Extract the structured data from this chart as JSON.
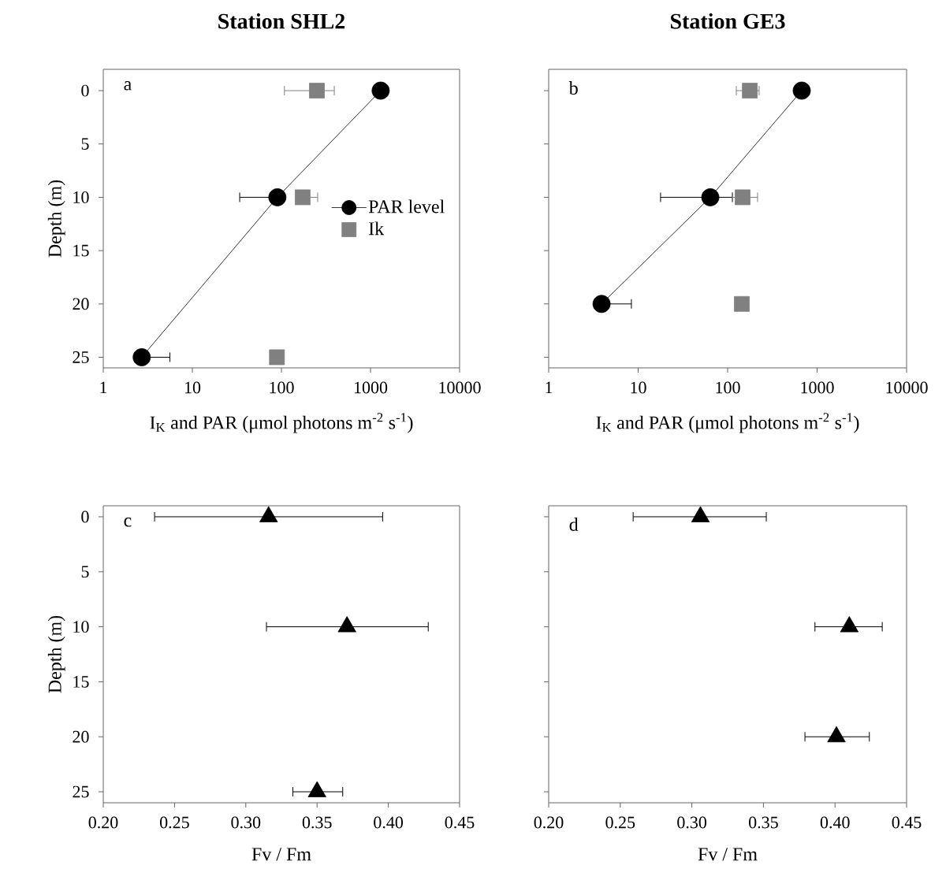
{
  "chart_data": [
    {
      "type": "scatter",
      "title": "Station SHL2",
      "xlabel": "I$_{K}$ and PAR (μmol photons m$^{-2}$ s$^{-1}$)",
      "ylabel": "Depth (m)",
      "annotations": [
        "a"
      ],
      "log": "x",
      "xlim": [
        1,
        10000
      ],
      "xticks": [
        1,
        10,
        100,
        1000,
        10000
      ],
      "ylim": [
        26,
        -2
      ],
      "yticks": [
        0,
        5,
        10,
        15,
        20,
        25
      ],
      "legend": "right",
      "series": [
        {
          "name": "PAR level",
          "type": "line",
          "marker": "circle",
          "color": "#000000",
          "x": [
            1300,
            90,
            2.7
          ],
          "values": [
            0,
            10,
            25
          ],
          "xerrors": [
            null,
            [
              34,
              106
            ],
            [
              2.7,
              5.6
            ]
          ]
        },
        {
          "name": "Ik",
          "type": "scatter",
          "marker": "square",
          "color": "#808080",
          "x": [
            250,
            173,
            89
          ],
          "values": [
            0,
            10,
            25
          ],
          "xerrors": [
            [
              108,
              392
            ],
            [
              173,
              255
            ],
            null
          ]
        }
      ]
    },
    {
      "type": "scatter",
      "title": "Station GE3",
      "xlabel": "I$_{K}$ and PAR (μmol photons m$^{-2}$ s$^{-1}$)",
      "annotations": [
        "b"
      ],
      "log": "x",
      "xlim": [
        1,
        10000
      ],
      "xticks": [
        1,
        10,
        100,
        1000,
        10000
      ],
      "ylim": [
        26,
        -2
      ],
      "yticks": [
        0,
        5,
        10,
        15,
        20,
        25
      ],
      "tick_labels": "x",
      "series": [
        {
          "type": "line",
          "marker": "circle",
          "color": "#000000",
          "x": [
            673,
            64,
            3.9
          ],
          "values": [
            0,
            10,
            20
          ],
          "xerrors": [
            null,
            [
              17.8,
              113
            ],
            [
              3.9,
              8.4
            ]
          ]
        },
        {
          "type": "scatter",
          "marker": "square",
          "color": "#808080",
          "x": [
            177,
            147,
            144
          ],
          "values": [
            0,
            10,
            20
          ],
          "xerrors": [
            [
              125,
              225
            ],
            [
              113,
              216
            ],
            null
          ]
        }
      ]
    },
    {
      "type": "scatter",
      "xlabel": "Fv / Fm",
      "ylabel": "Depth (m)",
      "annotations": [
        "c"
      ],
      "xlim": [
        0.2,
        0.45
      ],
      "xticks": [
        {
          "value": 0.2,
          "label": "0.20"
        },
        {
          "value": 0.25,
          "label": "0.25"
        },
        {
          "value": 0.3,
          "label": "0.30"
        },
        {
          "value": 0.35,
          "label": "0.35"
        },
        {
          "value": 0.4,
          "label": "0.40"
        },
        {
          "value": 0.45,
          "label": "0.45"
        }
      ],
      "ylim": [
        26,
        -1
      ],
      "yticks": [
        0,
        5,
        10,
        15,
        20,
        25
      ],
      "series": [
        {
          "type": "scatter",
          "marker": "triangle",
          "color": "#000000",
          "x": [
            0.316,
            0.371,
            0.35
          ],
          "values": [
            0,
            10,
            25
          ],
          "xerrors": [
            [
              0.236,
              0.396
            ],
            [
              0.3145,
              0.428
            ],
            [
              0.333,
              0.368
            ]
          ]
        }
      ]
    },
    {
      "type": "scatter",
      "xlabel": "Fv / Fm",
      "annotations": [
        "d"
      ],
      "xlim": [
        0.2,
        0.45
      ],
      "xticks": [
        {
          "value": 0.2,
          "label": "0.20"
        },
        {
          "value": 0.25,
          "label": "0.25"
        },
        {
          "value": 0.3,
          "label": "0.30"
        },
        {
          "value": 0.35,
          "label": "0.35"
        },
        {
          "value": 0.4,
          "label": "0.40"
        },
        {
          "value": 0.45,
          "label": "0.45"
        }
      ],
      "ylim": [
        26,
        -1
      ],
      "yticks": [
        0,
        5,
        10,
        15,
        20,
        25
      ],
      "tick_labels": "x",
      "series": [
        {
          "type": "scatter",
          "marker": "triangle",
          "color": "#000000",
          "x": [
            0.306,
            0.41,
            0.401
          ],
          "values": [
            0,
            10,
            20
          ],
          "xerrors": [
            [
              0.259,
              0.352
            ],
            [
              0.386,
              0.433
            ],
            [
              0.379,
              0.424
            ]
          ]
        }
      ]
    }
  ]
}
